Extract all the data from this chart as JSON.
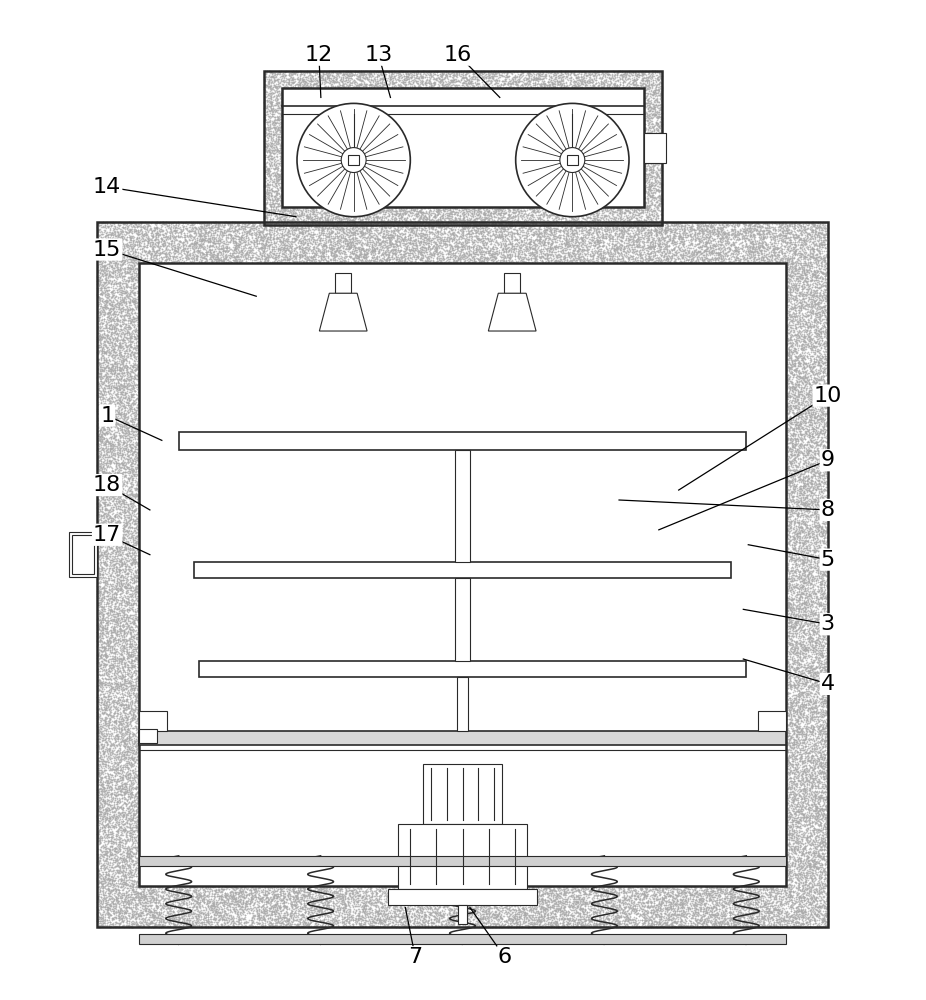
{
  "bg_color": "#ffffff",
  "line_color": "#2a2a2a",
  "stipple_color": "#b0b0b0",
  "fig_w": 9.26,
  "fig_h": 10.0,
  "label_fontsize": 16
}
